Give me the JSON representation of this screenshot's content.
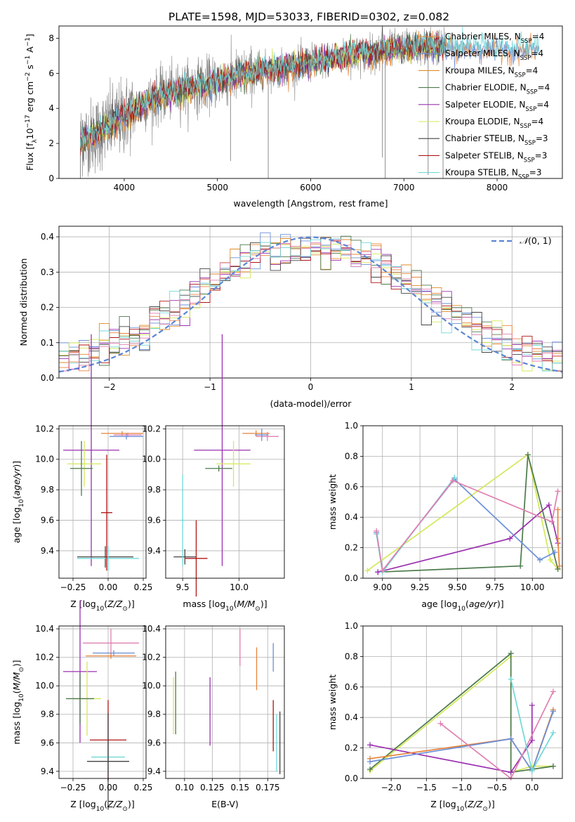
{
  "figure": {
    "title": "PLATE=1598, MJD=53033, FIBERID=0302, z=0.082"
  },
  "colors": {
    "Chabrier MILES": "#e8833a",
    "Salpeter MILES": "#6b8fd8",
    "Kroupa MILES": "#e08a2a",
    "Chabrier ELODIE": "#4c7a4c",
    "Salpeter ELODIE": "#9b30b0",
    "Kroupa ELODIE": "#d4e85a",
    "Chabrier STELIB": "#444444",
    "Salpeter STELIB": "#b01515",
    "Kroupa STELIB": "#70d8d8",
    "pink": "#e080b0",
    "data": "#808080",
    "normal": "#5b86d6"
  },
  "chart_data": [
    {
      "id": "spectrum",
      "type": "line",
      "xlabel": "wavelength [Angstrom, rest frame]",
      "ylabel": "Flux [f_λ 10^-17 erg cm^-2 s^-1 A^-1]",
      "xlim": [
        3300,
        8700
      ],
      "ylim": [
        0,
        8.7
      ],
      "xticks": [
        4000,
        5000,
        6000,
        7000,
        8000
      ],
      "yticks": [
        0,
        2,
        4,
        6,
        8
      ],
      "legend_position": "top-right",
      "series": [
        {
          "name": "Chabrier MILES, N_SSP=4",
          "label": "Chabrier MILES, N",
          "sub": "SSP",
          "suffix": "=4",
          "color": "#e8833a"
        },
        {
          "name": "Salpeter MILES, N_SSP=4",
          "label": "Salpeter MILES, N",
          "sub": "SSP",
          "suffix": "=4",
          "color": "#6b8fd8"
        },
        {
          "name": "Kroupa MILES, N_SSP=4",
          "label": "Kroupa MILES, N",
          "sub": "SSP",
          "suffix": "=4",
          "color": "#e08a2a"
        },
        {
          "name": "Chabrier ELODIE, N_SSP=4",
          "label": "Chabrier ELODIE, N",
          "sub": "SSP",
          "suffix": "=4",
          "color": "#4c7a4c"
        },
        {
          "name": "Salpeter ELODIE, N_SSP=4",
          "label": "Salpeter ELODIE, N",
          "sub": "SSP",
          "suffix": "=4",
          "color": "#9b30b0"
        },
        {
          "name": "Kroupa ELODIE, N_SSP=4",
          "label": "Kroupa ELODIE, N",
          "sub": "SSP",
          "suffix": "=4",
          "color": "#d4e85a"
        },
        {
          "name": "Chabrier STELIB, N_SSP=3",
          "label": "Chabrier STELIB, N",
          "sub": "SSP",
          "suffix": "=3",
          "color": "#444444"
        },
        {
          "name": "Salpeter STELIB, N_SSP=3",
          "label": "Salpeter STELIB, N",
          "sub": "SSP",
          "suffix": "=3",
          "color": "#b01515"
        },
        {
          "name": "Kroupa STELIB, N_SSP=3",
          "label": "Kroupa STELIB, N",
          "sub": "SSP",
          "suffix": "=3",
          "color": "#70d8d8"
        }
      ],
      "data_anchor": {
        "x": [
          3530,
          3700,
          3900,
          4100,
          4300,
          4500,
          4700,
          4900,
          5100,
          5300,
          5500,
          5700,
          5900,
          6100,
          6300,
          6500,
          6700,
          6900,
          7100,
          7300,
          7450
        ],
        "y": [
          2.2,
          2.5,
          3.2,
          3.9,
          4.5,
          4.9,
          5.2,
          5.4,
          5.7,
          5.9,
          6.2,
          6.3,
          6.5,
          6.7,
          6.9,
          7.1,
          7.2,
          7.4,
          7.5,
          7.6,
          7.5
        ]
      },
      "model_extension": {
        "x": [
          7450,
          8450
        ],
        "y": [
          7.5,
          7.4
        ]
      }
    },
    {
      "id": "residuals",
      "type": "histogram",
      "xlabel": "(data-model)/error",
      "ylabel": "Normed distribution",
      "xlim": [
        -2.5,
        2.5
      ],
      "ylim": [
        0,
        0.43
      ],
      "xticks": [
        -2,
        -1,
        0,
        1,
        2
      ],
      "yticks": [
        0.0,
        0.1,
        0.2,
        0.3,
        0.4
      ],
      "grid": true,
      "legend_position": "top-right",
      "reference_curve": {
        "name": "N(0,1)",
        "label_text": "(0, 1)",
        "label_symbol": "𝒩",
        "mean": 0,
        "sigma": 1
      },
      "bin_width": 0.1
    },
    {
      "id": "age-vs-Z",
      "type": "errorbar",
      "xlabel": "Z [log10(Z/Z⊙)]",
      "ylabel": "age [log10(age/yr)]",
      "xlim": [
        -0.35,
        0.27
      ],
      "ylim": [
        9.22,
        10.22
      ],
      "xticks": [
        -0.25,
        0.0,
        0.25
      ],
      "yticks": [
        9.4,
        9.6,
        9.8,
        10.0,
        10.2
      ],
      "grid": true,
      "points": [
        {
          "series": "Salpeter MILES",
          "x": 0.13,
          "y": 10.15,
          "xerr": 0.12,
          "yerr": 0.02
        },
        {
          "series": "Chabrier MILES",
          "x": 0.1,
          "y": 10.17,
          "xerr": 0.15,
          "yerr": 0.015
        },
        {
          "series": "pink",
          "x": 0.14,
          "y": 10.16,
          "xerr": 0.1,
          "yerr": 0.015
        },
        {
          "series": "Salpeter ELODIE",
          "x": -0.12,
          "y": 10.06,
          "xerr": 0.2,
          "yerr": 0.76
        },
        {
          "series": "Kroupa ELODIE",
          "x": -0.17,
          "y": 9.97,
          "xerr": 0.12,
          "yerr": 0.15
        },
        {
          "series": "Chabrier ELODIE",
          "x": -0.19,
          "y": 9.94,
          "xerr": 0.08,
          "yerr": 0.18
        },
        {
          "series": "Chabrier STELIB",
          "x": -0.02,
          "y": 9.36,
          "xerr": 0.2,
          "yerr": 0.07
        },
        {
          "series": "Kroupa STELIB",
          "x": 0.0,
          "y": 9.35,
          "xerr": 0.22,
          "yerr": 0.08
        },
        {
          "series": "Salpeter STELIB",
          "x": -0.01,
          "y": 9.65,
          "xerr": 0.04,
          "yerr": 0.38
        }
      ]
    },
    {
      "id": "age-vs-mass",
      "type": "errorbar",
      "xlabel": "mass [log10(M/M⊙)]",
      "ylabel": "",
      "xlim": [
        9.35,
        10.4
      ],
      "ylim": [
        9.22,
        10.22
      ],
      "xticks": [
        9.5,
        10.0
      ],
      "yticks": [
        9.4,
        9.6,
        9.8,
        10.0,
        10.2
      ],
      "grid": true,
      "points": [
        {
          "series": "Chabrier MILES",
          "x": 10.15,
          "y": 10.17,
          "xerr": 0.12,
          "yerr": 0.02
        },
        {
          "series": "pink",
          "x": 10.25,
          "y": 10.15,
          "xerr": 0.1,
          "yerr": 0.03
        },
        {
          "series": "Salpeter MILES",
          "x": 10.2,
          "y": 10.16,
          "xerr": 0.06,
          "yerr": 0.04
        },
        {
          "series": "Salpeter ELODIE",
          "x": 9.85,
          "y": 10.06,
          "xerr": 0.25,
          "yerr": 0.76
        },
        {
          "series": "Kroupa ELODIE",
          "x": 9.95,
          "y": 9.97,
          "xerr": 0.15,
          "yerr": 0.15
        },
        {
          "series": "Chabrier ELODIE",
          "x": 9.82,
          "y": 9.94,
          "xerr": 0.12,
          "yerr": 0.02
        },
        {
          "series": "Chabrier STELIB",
          "x": 9.52,
          "y": 9.36,
          "xerr": 0.1,
          "yerr": 0.05
        },
        {
          "series": "Salpeter STELIB",
          "x": 9.62,
          "y": 9.35,
          "xerr": 0.1,
          "yerr": 0.25
        },
        {
          "series": "Kroupa STELIB",
          "x": 9.5,
          "y": 9.6,
          "xerr": 0.02,
          "yerr": 0.3
        }
      ]
    },
    {
      "id": "massweight-vs-age",
      "type": "line",
      "xlabel": "age [log10(age/yr)]",
      "ylabel": "mass weight",
      "xlim": [
        8.87,
        10.2
      ],
      "ylim": [
        0,
        1.0
      ],
      "xticks": [
        9.0,
        9.25,
        9.5,
        9.75,
        10.0
      ],
      "yticks": [
        0.0,
        0.2,
        0.4,
        0.6,
        0.8,
        1.0
      ],
      "grid": true,
      "series": [
        {
          "name": "Kroupa ELODIE",
          "points": [
            [
              8.9,
              0.05
            ],
            [
              9.97,
              0.81
            ],
            [
              10.12,
              0.12
            ],
            [
              10.17,
              0.06
            ]
          ]
        },
        {
          "name": "Chabrier ELODIE",
          "points": [
            [
              8.97,
              0.04
            ],
            [
              9.92,
              0.08
            ],
            [
              9.97,
              0.81
            ],
            [
              10.17,
              0.06
            ]
          ]
        },
        {
          "name": "Salpeter ELODIE",
          "points": [
            [
              8.97,
              0.04
            ],
            [
              9.85,
              0.26
            ],
            [
              10.11,
              0.48
            ],
            [
              10.17,
              0.23
            ]
          ]
        },
        {
          "name": "Salpeter MILES",
          "points": [
            [
              8.96,
              0.3
            ],
            [
              9.0,
              0.05
            ],
            [
              9.48,
              0.65
            ],
            [
              10.05,
              0.12
            ],
            [
              10.15,
              0.17
            ]
          ]
        },
        {
          "name": "Kroupa STELIB",
          "points": [
            [
              8.96,
              0.29
            ],
            [
              9.0,
              0.04
            ],
            [
              9.48,
              0.66
            ]
          ]
        },
        {
          "name": "pink",
          "points": [
            [
              8.96,
              0.31
            ],
            [
              9.0,
              0.05
            ],
            [
              9.47,
              0.64
            ],
            [
              10.13,
              0.37
            ],
            [
              10.17,
              0.57
            ]
          ]
        },
        {
          "name": "Chabrier MILES",
          "points": [
            [
              10.17,
              0.45
            ],
            [
              10.17,
              0.26
            ],
            [
              10.18,
              0.08
            ]
          ]
        }
      ]
    },
    {
      "id": "mass-vs-Z",
      "type": "errorbar",
      "xlabel": "Z [log10(Z/Z⊙)]",
      "ylabel": "mass [log10(M/M⊙)]",
      "xlim": [
        -0.35,
        0.27
      ],
      "ylim": [
        9.35,
        10.42
      ],
      "xticks": [
        -0.25,
        0.0,
        0.25
      ],
      "yticks": [
        9.4,
        9.6,
        9.8,
        10.0,
        10.2,
        10.4
      ],
      "grid": true,
      "points": [
        {
          "series": "pink",
          "x": 0.02,
          "y": 10.3,
          "xerr": 0.2,
          "yerr": 0.1
        },
        {
          "series": "Salpeter MILES",
          "x": 0.04,
          "y": 10.23,
          "xerr": 0.15,
          "yerr": 0.02
        },
        {
          "series": "Chabrier MILES",
          "x": 0.02,
          "y": 10.21,
          "xerr": 0.18,
          "yerr": 0.02
        },
        {
          "series": "Salpeter ELODIE",
          "x": -0.2,
          "y": 10.1,
          "xerr": 0.12,
          "yerr": 0.5
        },
        {
          "series": "Kroupa ELODIE",
          "x": -0.15,
          "y": 9.91,
          "xerr": 0.1,
          "yerr": 0.26
        },
        {
          "series": "Chabrier ELODIE",
          "x": -0.2,
          "y": 9.91,
          "xerr": 0.1,
          "yerr": 0.18
        },
        {
          "series": "Salpeter STELIB",
          "x": 0.0,
          "y": 9.62,
          "xerr": 0.13,
          "yerr": 0.28
        },
        {
          "series": "Kroupa STELIB",
          "x": 0.0,
          "y": 9.5,
          "xerr": 0.12,
          "yerr": 0.1
        },
        {
          "series": "Chabrier STELIB",
          "x": 0.0,
          "y": 9.47,
          "xerr": 0.15,
          "yerr": 0.34
        }
      ]
    },
    {
      "id": "mass-vs-EBV",
      "type": "errorbar",
      "xlabel": "E(B-V)",
      "ylabel": "",
      "xlim": [
        0.083,
        0.19
      ],
      "ylim": [
        9.35,
        10.42
      ],
      "xticks": [
        0.1,
        0.125,
        0.15,
        0.175
      ],
      "yticks": [
        9.4,
        9.6,
        9.8,
        10.0,
        10.2,
        10.4
      ],
      "grid": true,
      "points": [
        {
          "series": "pink",
          "x": 0.15,
          "y": 10.27,
          "xerr": 0,
          "yerr": 0.13
        },
        {
          "series": "Chabrier MILES",
          "x": 0.165,
          "y": 10.12,
          "xerr": 0,
          "yerr": 0.15
        },
        {
          "series": "Salpeter MILES",
          "x": 0.18,
          "y": 10.2,
          "xerr": 0,
          "yerr": 0.1
        },
        {
          "series": "Kroupa ELODIE",
          "x": 0.09,
          "y": 9.86,
          "xerr": 0,
          "yerr": 0.2
        },
        {
          "series": "Chabrier ELODIE",
          "x": 0.092,
          "y": 9.88,
          "xerr": 0,
          "yerr": 0.22
        },
        {
          "series": "Salpeter ELODIE",
          "x": 0.123,
          "y": 9.82,
          "xerr": 0,
          "yerr": 0.24
        },
        {
          "series": "Salpeter STELIB",
          "x": 0.18,
          "y": 9.72,
          "xerr": 0,
          "yerr": 0.18
        },
        {
          "series": "Kroupa STELIB",
          "x": 0.183,
          "y": 9.6,
          "xerr": 0,
          "yerr": 0.2
        },
        {
          "series": "Chabrier STELIB",
          "x": 0.186,
          "y": 9.6,
          "xerr": 0,
          "yerr": 0.22
        }
      ]
    },
    {
      "id": "massweight-vs-Z",
      "type": "line",
      "xlabel": "Z [log10(Z/Z⊙)]",
      "ylabel": "mass weight",
      "xlim": [
        -2.4,
        0.43
      ],
      "ylim": [
        0,
        1.0
      ],
      "xticks": [
        -2.0,
        -1.5,
        -1.0,
        -0.5,
        0.0
      ],
      "yticks": [
        0.0,
        0.2,
        0.4,
        0.6,
        0.8,
        1.0
      ],
      "grid": true,
      "series": [
        {
          "name": "Kroupa ELODIE",
          "points": [
            [
              -2.3,
              0.05
            ],
            [
              -0.3,
              0.8
            ],
            [
              -0.3,
              0.04
            ],
            [
              0.0,
              0.08
            ],
            [
              0.3,
              0.08
            ]
          ]
        },
        {
          "name": "Chabrier ELODIE",
          "points": [
            [
              -2.3,
              0.06
            ],
            [
              -0.3,
              0.82
            ],
            [
              -0.3,
              0.04
            ],
            [
              0.3,
              0.08
            ]
          ]
        },
        {
          "name": "Salpeter ELODIE",
          "points": [
            [
              -2.3,
              0.22
            ],
            [
              -0.3,
              0.04
            ],
            [
              0.0,
              0.25
            ],
            [
              0.0,
              0.48
            ]
          ]
        },
        {
          "name": "Chabrier MILES",
          "points": [
            [
              -2.3,
              0.13
            ],
            [
              -0.3,
              0.26
            ],
            [
              0.0,
              0.05
            ],
            [
              0.3,
              0.45
            ]
          ]
        },
        {
          "name": "Salpeter MILES",
          "points": [
            [
              -2.3,
              0.11
            ],
            [
              -0.3,
              0.26
            ],
            [
              0.0,
              0.05
            ],
            [
              0.3,
              0.44
            ]
          ]
        },
        {
          "name": "pink",
          "points": [
            [
              -1.3,
              0.36
            ],
            [
              -0.3,
              0.0
            ],
            [
              0.3,
              0.57
            ]
          ]
        },
        {
          "name": "Kroupa STELIB",
          "points": [
            [
              -0.3,
              0.65
            ],
            [
              0.0,
              0.05
            ],
            [
              0.3,
              0.3
            ]
          ]
        }
      ]
    }
  ]
}
